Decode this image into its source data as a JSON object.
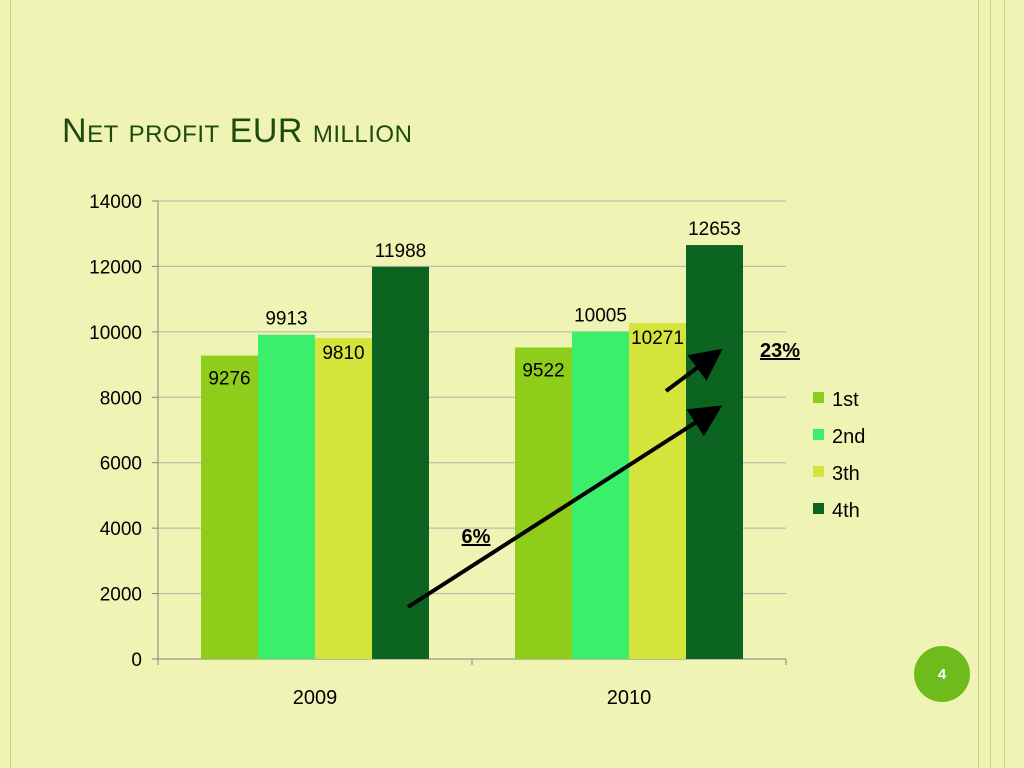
{
  "slide": {
    "title_word1_first": "N",
    "title_word1_rest": "et profit",
    "title_word2": "EUR",
    "title_word3": "million",
    "page_number": "4"
  },
  "colors": {
    "background": "#eff4b5",
    "title": "#1f4a0e",
    "accent_circle": "#6dbb1d"
  },
  "chart_data": {
    "type": "bar",
    "title": "Net profit EUR million",
    "categories": [
      "2009",
      "2010"
    ],
    "series": [
      {
        "name": "1st",
        "values": [
          9276,
          9522
        ],
        "color": "#8fcd1b"
      },
      {
        "name": "2nd",
        "values": [
          9913,
          10005
        ],
        "color": "#3bef6a"
      },
      {
        "name": "3th",
        "values": [
          9810,
          10271
        ],
        "color": "#d5e43a"
      },
      {
        "name": "4th",
        "values": [
          11988,
          12653
        ],
        "color": "#0b6420"
      }
    ],
    "ylim": [
      0,
      14000
    ],
    "yticks": [
      0,
      2000,
      4000,
      6000,
      8000,
      10000,
      12000,
      14000
    ],
    "grid": true,
    "legend": "right",
    "data_labels": true,
    "annotations": [
      {
        "text": "6%",
        "underlined": true
      },
      {
        "text": "23%",
        "underlined": true
      }
    ]
  }
}
